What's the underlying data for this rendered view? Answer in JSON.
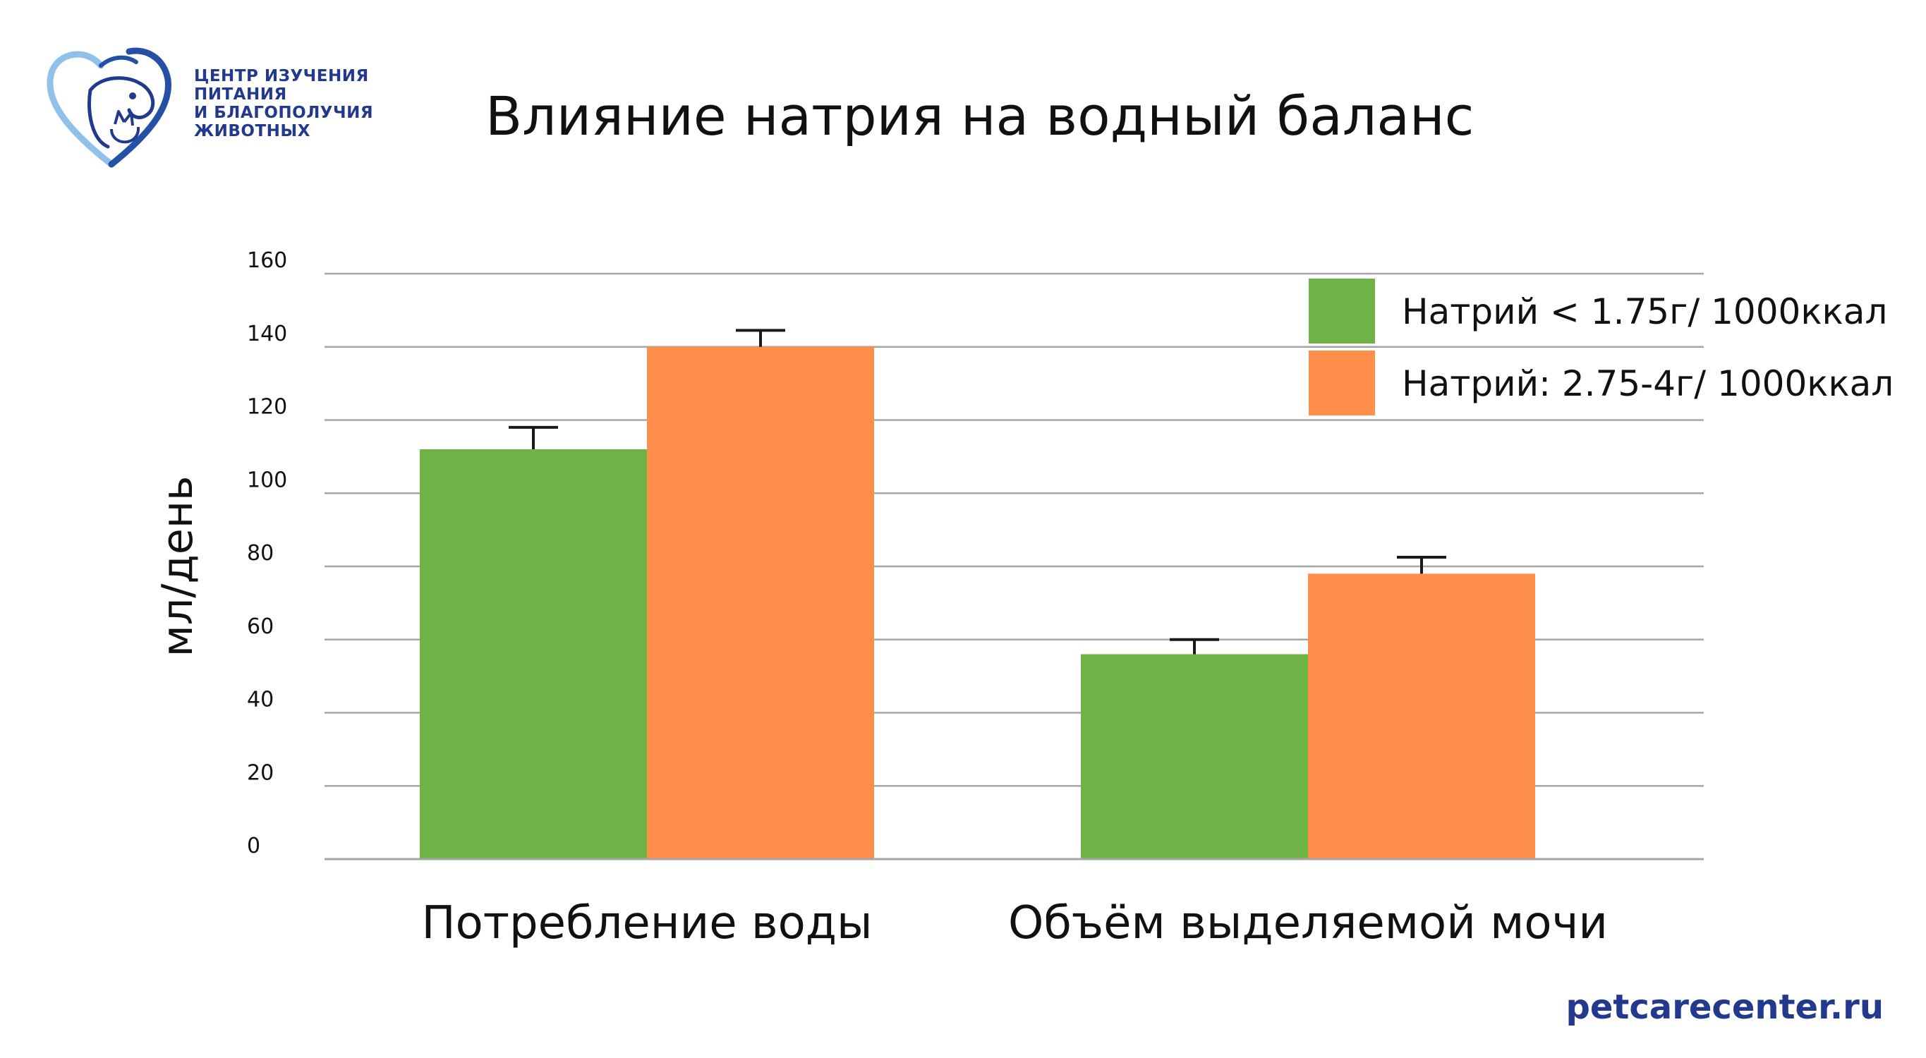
{
  "header": {
    "org_lines": [
      "ЦЕНТР ИЗУЧЕНИЯ",
      "ПИТАНИЯ",
      "И БЛАГОПОЛУЧИЯ",
      "ЖИВОТНЫХ"
    ],
    "logo_icon": "dog-cat-heart-icon"
  },
  "colors": {
    "series_low": "#6db346",
    "series_high": "#ff8e4a",
    "grid": "#a6a6a6",
    "brand": "#23398e"
  },
  "footer": {
    "url": "petcarecenter.ru"
  },
  "chart_data": {
    "type": "bar",
    "title": "Влияние натрия на водный баланс",
    "ylabel": "мл/день",
    "xlabel": "",
    "ylim": [
      0,
      160
    ],
    "yticks": [
      "0",
      "20",
      "40",
      "60",
      "80",
      "100",
      "120",
      "140",
      "160"
    ],
    "categories": [
      "Потребление воды",
      "Объём выделяемой мочи"
    ],
    "series": [
      {
        "name": "Натрий < 1.75г/ 1000ккал",
        "values": [
          112,
          56
        ],
        "error": [
          6,
          4
        ]
      },
      {
        "name": "Натрий: 2.75-4г/ 1000ккал",
        "values": [
          140,
          78
        ],
        "error": [
          4.5,
          4.5
        ]
      }
    ],
    "grid": true,
    "legend_position": "top-right",
    "error_bars": true
  }
}
